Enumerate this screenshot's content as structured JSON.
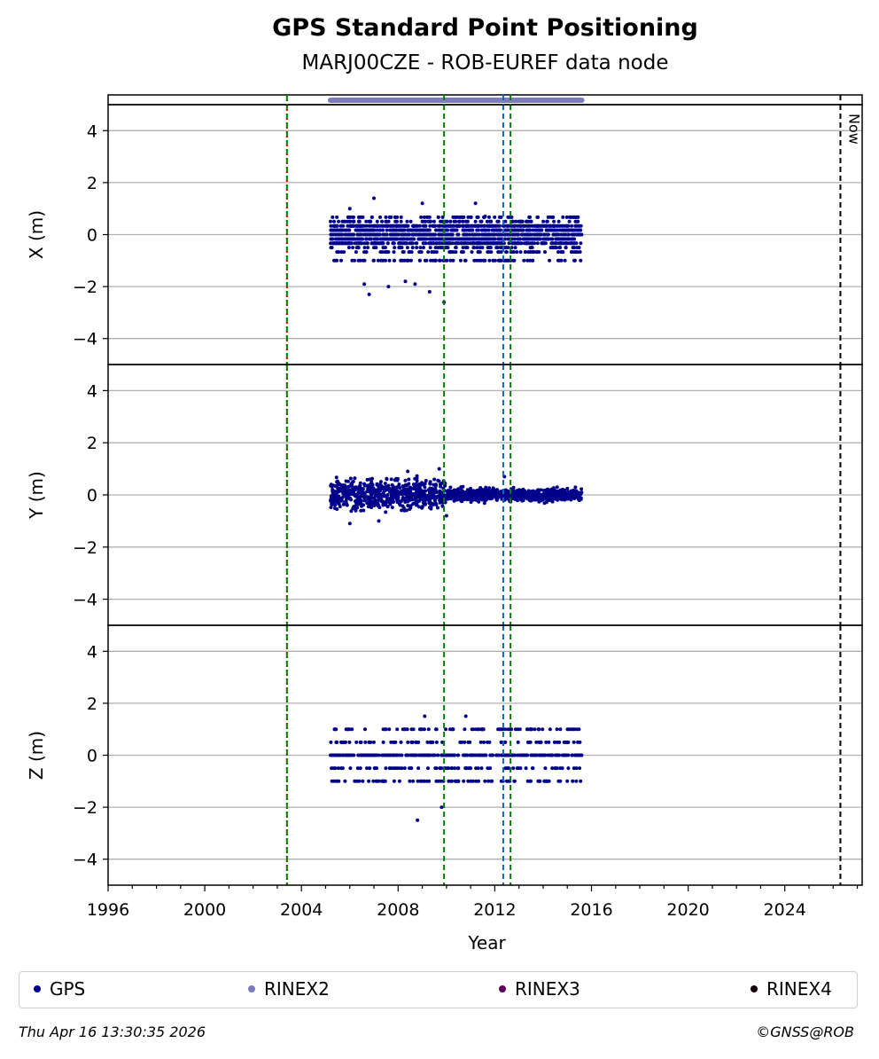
{
  "title": "GPS Standard Point Positioning",
  "subtitle": "MARJ00CZE - ROB-EUREF data node",
  "chart_data": {
    "type": "scatter",
    "xlabel": "Year",
    "xlim": [
      1996,
      2027.2
    ],
    "x_ticks": [
      "1996",
      "2000",
      "2004",
      "2008",
      "2012",
      "2016",
      "2020",
      "2024"
    ],
    "grid": "horizontal",
    "panels": [
      {
        "ylabel": "X (m)",
        "ylim": [
          -5,
          5
        ],
        "y_ticks": [
          "4",
          "2",
          "0",
          "−2",
          "−4"
        ],
        "levels": [
          -1,
          -0.67,
          -0.5,
          -0.33,
          -0.17,
          0,
          0.17,
          0.33,
          0.5,
          0.67
        ],
        "outliers": [
          [
            2007.0,
            1.4
          ],
          [
            2009.0,
            1.2
          ],
          [
            2011.2,
            1.2
          ],
          [
            2006.0,
            1.0
          ],
          [
            2011.6,
            0.7
          ],
          [
            2006.6,
            -1.9
          ],
          [
            2007.6,
            -2.0
          ],
          [
            2008.3,
            -1.8
          ],
          [
            2008.7,
            -1.9
          ],
          [
            2009.3,
            -2.2
          ],
          [
            2009.9,
            -2.6
          ],
          [
            2006.8,
            -2.3
          ]
        ]
      },
      {
        "ylabel": "Y (m)",
        "ylim": [
          -5,
          5
        ],
        "y_ticks": [
          "4",
          "2",
          "0",
          "−2",
          "−4"
        ],
        "levels": [],
        "outliers": [
          [
            2009.7,
            1.0
          ],
          [
            2008.4,
            0.9
          ],
          [
            2006.0,
            -1.1
          ],
          [
            2007.2,
            -1.0
          ],
          [
            2010.0,
            -0.8
          ],
          [
            2012.4,
            0.7
          ]
        ]
      },
      {
        "ylabel": "Z (m)",
        "ylim": [
          -5,
          5
        ],
        "y_ticks": [
          "4",
          "2",
          "0",
          "−2",
          "−4"
        ],
        "levels": [
          0,
          0.5,
          -0.5,
          1.0,
          -1.0
        ],
        "outliers": [
          [
            2009.1,
            1.5
          ],
          [
            2010.8,
            1.5
          ],
          [
            2009.8,
            -2.0
          ],
          [
            2008.8,
            -2.5
          ],
          [
            2009.2,
            -1.0
          ]
        ]
      }
    ],
    "gps_span": [
      2005.2,
      2015.6
    ],
    "rinex2_span": [
      2005.2,
      2015.6
    ],
    "vertical_lines": [
      {
        "x": 2003.4,
        "color": "#cc0000",
        "style": "dotted"
      },
      {
        "x": 2003.4,
        "color": "#008000",
        "style": "dashed"
      },
      {
        "x": 2009.9,
        "color": "#008000",
        "style": "dashed"
      },
      {
        "x": 2012.35,
        "color": "#1f5fbf",
        "style": "dashed"
      },
      {
        "x": 2012.65,
        "color": "#008000",
        "style": "dashed"
      },
      {
        "x": 2026.3,
        "color": "#000000",
        "style": "dashed"
      }
    ],
    "now_label": "Now",
    "colors": {
      "gps": "#00008b",
      "rinex2": "#7b7bbd",
      "rinex3": "#5c005c",
      "rinex4": "#1a0010"
    }
  },
  "legend": [
    {
      "label": "GPS",
      "color": "#00008b"
    },
    {
      "label": "RINEX2",
      "color": "#7b7bbd"
    },
    {
      "label": "RINEX3",
      "color": "#5c005c"
    },
    {
      "label": "RINEX4",
      "color": "#1a0010"
    }
  ],
  "footer": {
    "timestamp": "Thu Apr 16 13:30:35 2026",
    "copyright": "©GNSS@ROB"
  }
}
